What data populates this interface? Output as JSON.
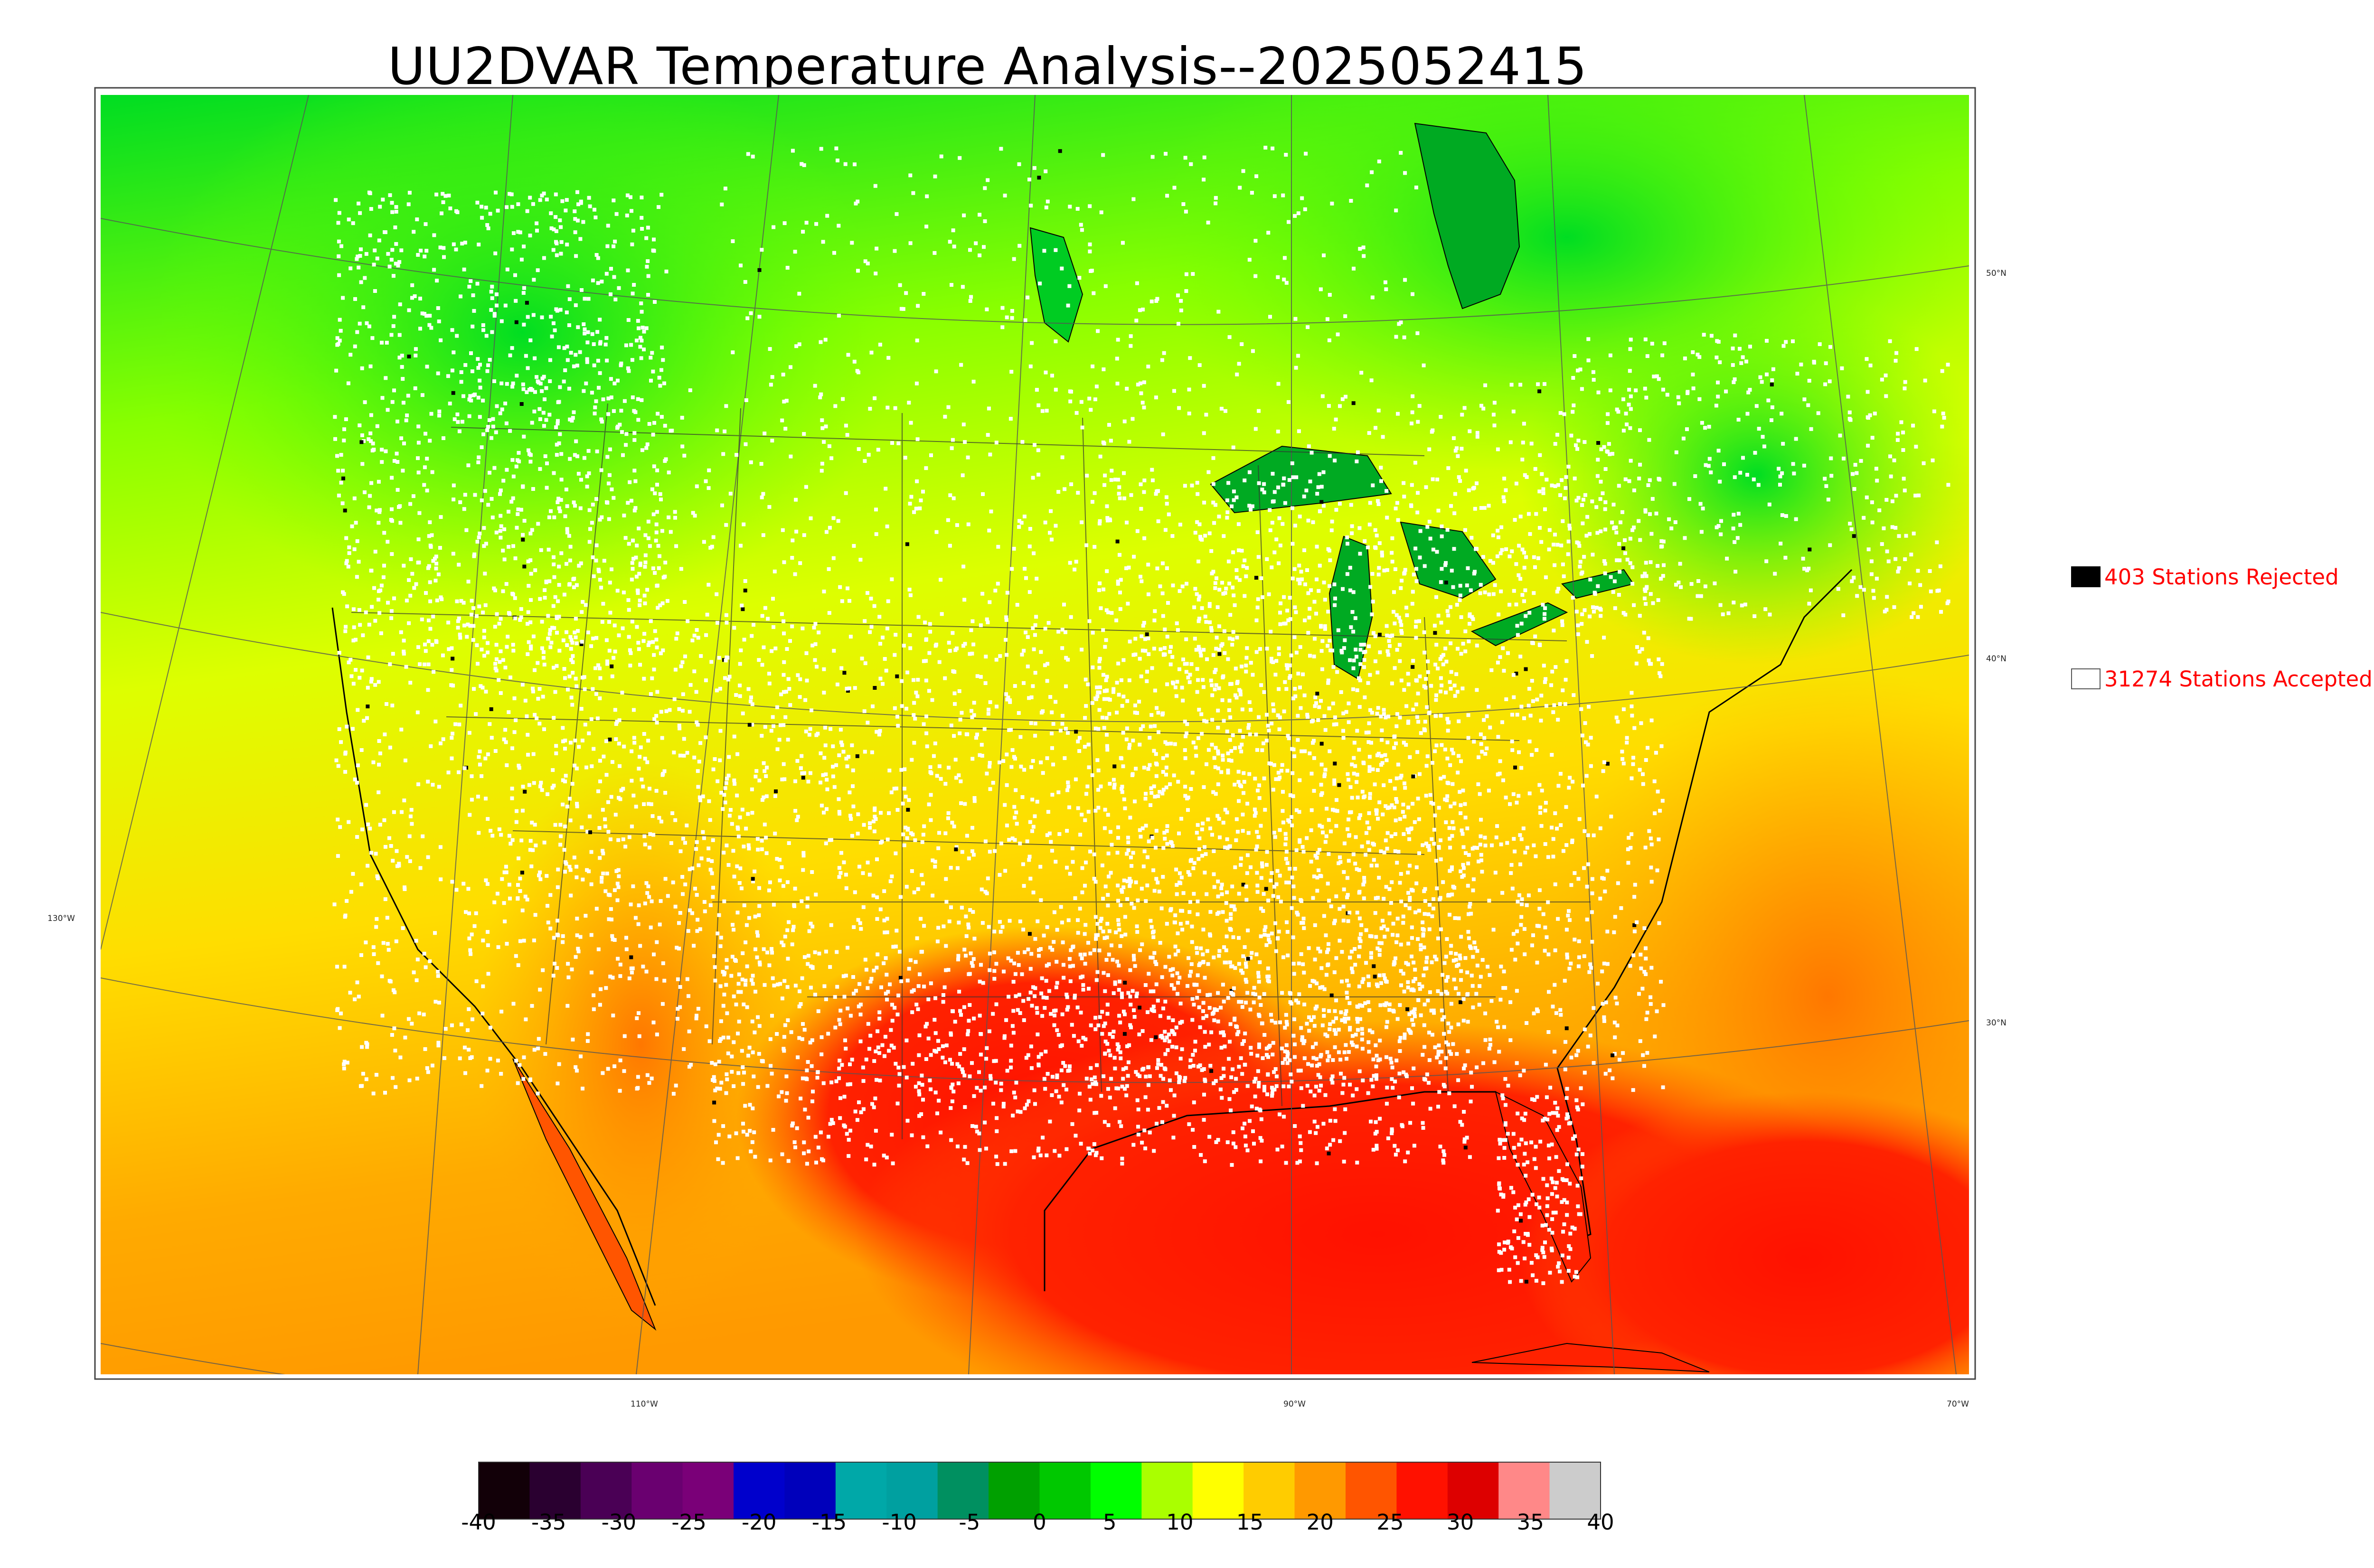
{
  "title": "UU2DVAR Temperature Analysis--2025052415",
  "legend": {
    "rejected": {
      "count_label": "403 Stations Rejected",
      "color": "#000000"
    },
    "accepted": {
      "count_label": "31274 Stations Accepted",
      "color": "#ffffff"
    }
  },
  "graticule_labels": {
    "lat": [
      "50°N",
      "40°N",
      "30°N"
    ],
    "lon_left": "130°W",
    "lon_bottom": [
      "110°W",
      "90°W",
      "70°W"
    ]
  },
  "colorbar": {
    "ticks": [
      "-40",
      "-35",
      "-30",
      "-25",
      "-20",
      "-15",
      "-10",
      "-5",
      "0",
      "5",
      "10",
      "15",
      "20",
      "25",
      "30",
      "35",
      "40"
    ],
    "range": [
      -40,
      40
    ],
    "colors": [
      "#120008",
      "#2a0030",
      "#4a0055",
      "#6a0070",
      "#7a0078",
      "#0000cc",
      "#0000bb",
      "#00a8a8",
      "#00a0a0",
      "#009060",
      "#00a000",
      "#00c800",
      "#00ff00",
      "#aaff00",
      "#ffff00",
      "#ffcc00",
      "#ff9900",
      "#ff5500",
      "#ff1100",
      "#dd0000",
      "#ff8888",
      "#cccccc"
    ]
  },
  "map_colors": {
    "cold_north": "#00cc22",
    "mid": "#ccff00",
    "warm": "#ffcc00",
    "hot": "#ff2200",
    "ocean_gulf": "#ff1100",
    "lakes": "#00aa22"
  }
}
